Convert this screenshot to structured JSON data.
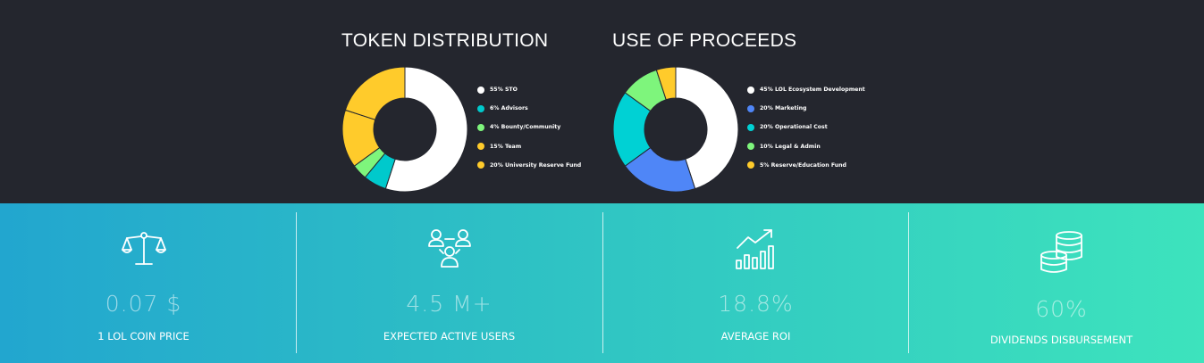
{
  "chart_data": [
    {
      "type": "pie",
      "title": "TOKEN DISTRIBUTION",
      "donut": true,
      "slices": [
        {
          "label": "55% STO",
          "value": 55,
          "color": "#ffffff"
        },
        {
          "label": "6% Advisors",
          "value": 6,
          "color": "#00c9cc"
        },
        {
          "label": "4% Bounty/Community",
          "value": 4,
          "color": "#7ef57c"
        },
        {
          "label": "15% Team",
          "value": 15,
          "color": "#ffcb2b"
        },
        {
          "label": "20% University Reserve Fund",
          "value": 20,
          "color": "#ffcb2b"
        }
      ],
      "legend_position": "right"
    },
    {
      "type": "pie",
      "title": "USE OF PROCEEDS",
      "donut": true,
      "slices": [
        {
          "label": "45% LOL Ecosystem Development",
          "value": 45,
          "color": "#ffffff"
        },
        {
          "label": "20% Marketing",
          "value": 20,
          "color": "#4f86f7"
        },
        {
          "label": "20% Operational Cost",
          "value": 20,
          "color": "#00d1d4"
        },
        {
          "label": "10% Legal & Admin",
          "value": 10,
          "color": "#7ef57c"
        },
        {
          "label": "5% Reserve/Education Fund",
          "value": 5,
          "color": "#ffcb2b"
        }
      ],
      "legend_position": "right"
    }
  ],
  "stats": [
    {
      "icon": "scale-icon",
      "value": "0.07 $",
      "label": "1 LOL COIN PRICE"
    },
    {
      "icon": "users-icon",
      "value": "4.5 M+",
      "label": "EXPECTED ACTIVE USERS"
    },
    {
      "icon": "growth-chart-icon",
      "value": "18.8%",
      "label": "AVERAGE ROI"
    },
    {
      "icon": "coins-icon",
      "value": "60%",
      "label": "DIVIDENDS DISBURSEMENT"
    }
  ]
}
